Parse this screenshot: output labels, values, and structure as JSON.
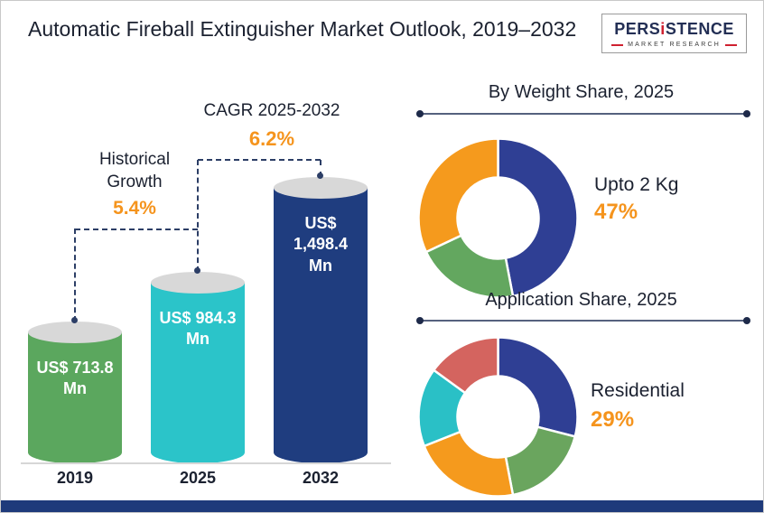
{
  "header": {
    "title": "Automatic Fireball Extinguisher Market Outlook, 2019–2032",
    "logo": {
      "brand_pre": "PERS",
      "brand_i": "i",
      "brand_post": "STENCE",
      "subtitle": "MARKET RESEARCH"
    }
  },
  "colors": {
    "accent_orange": "#f5941d",
    "navy": "#1e3a7b",
    "dashed_line": "#2c3e66",
    "bar_cap_gray": "#d8d8d8"
  },
  "chart_data": [
    {
      "type": "bar",
      "categories": [
        "2019",
        "2025",
        "2032"
      ],
      "values": [
        713.8,
        984.3,
        1498.4
      ],
      "value_labels": [
        "US$ 713.8 Mn",
        "US$ 984.3 Mn",
        "US$ 1,498.4 Mn"
      ],
      "colors": [
        "#5ba75e",
        "#2bc4c9",
        "#1f3d7f"
      ],
      "ylim": [
        0,
        1498.4
      ],
      "annotations": [
        {
          "label": "Historical Growth",
          "value": "5.4%"
        },
        {
          "label": "CAGR 2025-2032",
          "value": "6.2%"
        }
      ]
    },
    {
      "type": "pie",
      "title": "By Weight Share, 2025",
      "highlight": {
        "label": "Upto 2 Kg",
        "value": "47%"
      },
      "slices": [
        {
          "label": "Upto 2 Kg",
          "value": 47,
          "color": "#2f3f94"
        },
        {
          "label": "",
          "value": 21,
          "color": "#63a75f"
        },
        {
          "label": "",
          "value": 32,
          "color": "#f59a1d"
        }
      ]
    },
    {
      "type": "pie",
      "title": "Application Share, 2025",
      "highlight": {
        "label": "Residential",
        "value": "29%"
      },
      "slices": [
        {
          "label": "Residential",
          "value": 29,
          "color": "#2f3f94"
        },
        {
          "label": "",
          "value": 18,
          "color": "#6aa55e"
        },
        {
          "label": "",
          "value": 22,
          "color": "#f59a1d"
        },
        {
          "label": "",
          "value": 16,
          "color": "#2ac0c6"
        },
        {
          "label": "",
          "value": 15,
          "color": "#d4645f"
        }
      ]
    }
  ]
}
